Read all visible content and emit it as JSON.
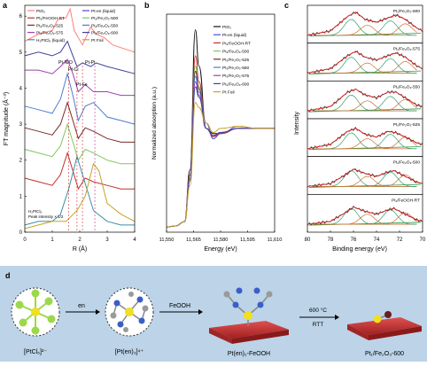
{
  "panel_a": {
    "letter": "a",
    "ylabel": "FT magnitude (Å⁻³)",
    "xlabel": "R (Å)",
    "xticks": [
      "0",
      "1",
      "2",
      "3",
      "4"
    ],
    "yticks": [
      "0",
      "1",
      "2",
      "3",
      "4",
      "5",
      "6"
    ],
    "legend": [
      "PtO₂",
      "Pt-en (liquid)",
      "Pt₁/FeOOH-RT",
      "Pt₁/Fe₂O₃-500",
      "Pt₁/Fe₂O₃-525",
      "Pt₁/Fe₂O₃-550",
      "Pt₁/Fe₂O₃-575",
      "Pt₁/Fe₂O₃-600",
      "H₂PtCl₆ (liquid)",
      "Pt Foil"
    ],
    "annotations": [
      "Pt-N/O",
      "Pt-Cl",
      "Pt-Fe",
      "Pt-Pt"
    ],
    "inset_line1": "H₂PtCl₆",
    "inset_line2": "Peak intensity × 1/2"
  },
  "panel_b": {
    "letter": "b",
    "ylabel": "Normalized absorption (a.u.)",
    "xlabel": "Energy (eV)",
    "xticks": [
      "11,550",
      "11,565",
      "11,580",
      "11,595",
      "11,610"
    ],
    "legend": [
      "PtO₂",
      "Pt-en (liquid)",
      "Pt₁/FeOOH-RT",
      "Pt₁/Fe₂O₃-500",
      "Pt₁/Fe₂O₃-525",
      "Pt₁/Fe₂O₃-550",
      "Pt₁/Fe₂O₃-575",
      "Pt₁/Fe₂O₃-600",
      "Pt Foil"
    ]
  },
  "panel_c": {
    "letter": "c",
    "ylabel": "Intensity",
    "xlabel": "Binding energy (eV)",
    "xticks": [
      "80",
      "78",
      "76",
      "74",
      "72",
      "70"
    ],
    "spectra": [
      "Pt₁/Fe₂O₃-600",
      "Pt₁/Fe₂O₃-575",
      "Pt₁/Fe₂O₃-550",
      "Pt₁/Fe₂O₃-525",
      "Pt₁/Fe₂O₃-500",
      "Pt₁/FeOOH-RT"
    ]
  },
  "panel_d": {
    "letter": "d",
    "arrow1": "en",
    "arrow2": "FeOOH",
    "arrow3_top": "600 °C",
    "arrow3_bottom": "RTT",
    "labels": [
      "[PtCl₆]²⁻",
      "[Pt(en)₃]⁴⁺",
      "Pt(en)₂-FeOOH",
      "Pt₁/Fe₂O₃-600"
    ]
  },
  "colors": {
    "PtO2": "#ff7f7f",
    "Pt-en": "#4b4bd6",
    "FeOOH-RT": "#c03030",
    "500": "#7cc85c",
    "525": "#7a2a2a",
    "550": "#4a7fcf",
    "575": "#a040b0",
    "600": "#4040a0",
    "H2PtCl6": "#3a8fa8",
    "Foil": "#c9a020"
  },
  "chart_data": [
    {
      "type": "line",
      "title": "",
      "xlabel": "R (Å)",
      "ylabel": "FT magnitude (Å⁻³)",
      "xlim": [
        0,
        4
      ],
      "ylim": [
        0,
        6.3
      ],
      "grid": false,
      "legend_position": "top",
      "series": [
        {
          "name": "PtO₂",
          "x": [
            0,
            0.5,
            1,
            1.2,
            1.5,
            1.65,
            1.8,
            2.1,
            2.4,
            2.6,
            2.9,
            3.2,
            3.6,
            4
          ],
          "y": [
            5.3,
            5.5,
            5.6,
            5.9,
            5.95,
            6.2,
            5.6,
            5.2,
            5.7,
            5.5,
            5.4,
            5.2,
            5.1,
            5.0
          ]
        },
        {
          "name": "Pt₁/Fe₂O₃-600",
          "x": [
            0,
            0.5,
            1,
            1.3,
            1.55,
            1.7,
            1.9,
            2.1,
            2.4,
            2.6,
            3,
            3.5,
            4
          ],
          "y": [
            4.9,
            5.0,
            4.9,
            5.0,
            5.3,
            5.0,
            4.6,
            4.7,
            4.6,
            4.7,
            4.6,
            4.5,
            4.4
          ]
        },
        {
          "name": "Pt₁/Fe₂O₃-575",
          "x": [
            0,
            0.5,
            1,
            1.3,
            1.55,
            1.75,
            1.95,
            2.2,
            2.5,
            3,
            3.5,
            4
          ],
          "y": [
            4.5,
            4.5,
            4.4,
            4.6,
            4.8,
            4.4,
            3.9,
            4.1,
            3.9,
            3.9,
            3.8,
            3.8
          ]
        },
        {
          "name": "Pt₁/Fe₂O₃-550",
          "x": [
            0,
            0.5,
            1,
            1.3,
            1.55,
            1.75,
            1.95,
            2.2,
            2.5,
            3,
            3.5,
            4
          ],
          "y": [
            3.5,
            3.4,
            3.3,
            3.7,
            4.4,
            3.8,
            3.1,
            3.5,
            3.6,
            3.2,
            3.1,
            3.0
          ]
        },
        {
          "name": "Pt₁/Fe₂O₃-525",
          "x": [
            0,
            0.5,
            1,
            1.3,
            1.55,
            1.75,
            1.95,
            2.2,
            2.5,
            3,
            3.5,
            4
          ],
          "y": [
            2.9,
            2.8,
            2.7,
            3.0,
            3.6,
            3.1,
            2.6,
            2.9,
            2.8,
            2.6,
            2.5,
            2.5
          ]
        },
        {
          "name": "Pt₁/Fe₂O₃-500",
          "x": [
            0,
            0.5,
            1,
            1.3,
            1.55,
            1.75,
            1.95,
            2.2,
            2.5,
            3,
            3.5,
            4
          ],
          "y": [
            2.3,
            2.2,
            2.1,
            2.4,
            3.0,
            2.5,
            2.0,
            2.3,
            2.2,
            2.0,
            1.9,
            1.9
          ]
        },
        {
          "name": "Pt₁/FeOOH-RT",
          "x": [
            0,
            0.5,
            1,
            1.3,
            1.55,
            1.75,
            1.95,
            2.2,
            2.5,
            3,
            3.5,
            4
          ],
          "y": [
            1.5,
            1.4,
            1.3,
            1.6,
            2.2,
            1.7,
            1.2,
            1.5,
            1.4,
            1.3,
            1.2,
            1.2
          ]
        },
        {
          "name": "H₂PtCl₆ (liquid)",
          "x": [
            0,
            0.5,
            1,
            1.3,
            1.6,
            1.9,
            2.1,
            2.5,
            3,
            3.5,
            4
          ],
          "y": [
            0.2,
            0.3,
            0.3,
            0.5,
            1.2,
            2.1,
            1.6,
            0.6,
            0.3,
            0.2,
            0.2
          ]
        },
        {
          "name": "Pt Foil",
          "x": [
            0,
            0.5,
            1,
            1.5,
            1.9,
            2.2,
            2.5,
            2.7,
            3,
            3.5,
            4
          ],
          "y": [
            0.1,
            0.2,
            0.3,
            0.3,
            0.6,
            1.0,
            1.9,
            1.7,
            0.8,
            0.5,
            0.3
          ]
        }
      ]
    },
    {
      "type": "line",
      "title": "",
      "xlabel": "Energy (eV)",
      "ylabel": "Normalized absorption (a.u.)",
      "xlim": [
        11550,
        11610
      ],
      "grid": false,
      "legend_position": "top-right",
      "series": [
        {
          "name": "PtO₂",
          "x": [
            11550,
            11555,
            11560,
            11563,
            11566,
            11568,
            11572,
            11576,
            11580,
            11590,
            11600,
            11610
          ],
          "y": [
            0.05,
            0.06,
            0.1,
            0.6,
            1.95,
            1.6,
            1.0,
            0.95,
            0.95,
            1.0,
            1.0,
            1.0
          ]
        },
        {
          "name": "Pt-en (liquid)",
          "x": [
            11550,
            11555,
            11560,
            11563,
            11566,
            11568,
            11572,
            11576,
            11580,
            11590,
            11600,
            11610
          ],
          "y": [
            0.05,
            0.06,
            0.1,
            0.5,
            1.55,
            1.4,
            1.05,
            0.9,
            0.95,
            1.02,
            1.0,
            1.0
          ]
        },
        {
          "name": "Pt₁/FeOOH-RT",
          "x": [
            11550,
            11555,
            11560,
            11563,
            11566,
            11568,
            11572,
            11576,
            11580,
            11590,
            11600,
            11610
          ],
          "y": [
            0.05,
            0.06,
            0.1,
            0.55,
            1.7,
            1.45,
            1.0,
            0.92,
            0.95,
            1.0,
            1.0,
            1.0
          ]
        },
        {
          "name": "Pt₁/Fe₂O₃-500",
          "x": [
            11550,
            11555,
            11560,
            11563,
            11566,
            11568,
            11572,
            11576,
            11580,
            11590,
            11600,
            11610
          ],
          "y": [
            0.05,
            0.06,
            0.1,
            0.55,
            1.6,
            1.4,
            1.0,
            0.93,
            0.96,
            1.0,
            1.0,
            1.0
          ]
        },
        {
          "name": "Pt₁/Fe₂O₃-525",
          "x": [
            11550,
            11555,
            11560,
            11563,
            11566,
            11568,
            11572,
            11576,
            11580,
            11590,
            11600,
            11610
          ],
          "y": [
            0.05,
            0.06,
            0.1,
            0.55,
            1.55,
            1.38,
            1.0,
            0.93,
            0.96,
            1.0,
            1.0,
            1.0
          ]
        },
        {
          "name": "Pt₁/Fe₂O₃-550",
          "x": [
            11550,
            11555,
            11560,
            11563,
            11566,
            11568,
            11572,
            11576,
            11580,
            11590,
            11600,
            11610
          ],
          "y": [
            0.05,
            0.06,
            0.1,
            0.52,
            1.5,
            1.35,
            1.0,
            0.93,
            0.96,
            1.0,
            1.0,
            1.0
          ]
        },
        {
          "name": "Pt₁/Fe₂O₃-575",
          "x": [
            11550,
            11555,
            11560,
            11563,
            11566,
            11568,
            11572,
            11576,
            11580,
            11590,
            11600,
            11610
          ],
          "y": [
            0.05,
            0.06,
            0.1,
            0.5,
            1.45,
            1.32,
            1.0,
            0.93,
            0.96,
            1.0,
            1.0,
            1.0
          ]
        },
        {
          "name": "Pt₁/Fe₂O₃-600",
          "x": [
            11550,
            11555,
            11560,
            11563,
            11566,
            11568,
            11572,
            11576,
            11580,
            11590,
            11600,
            11610
          ],
          "y": [
            0.05,
            0.06,
            0.1,
            0.5,
            1.4,
            1.3,
            1.0,
            0.93,
            0.96,
            1.0,
            1.0,
            1.0
          ]
        },
        {
          "name": "Pt Foil",
          "x": [
            11550,
            11555,
            11560,
            11563,
            11566,
            11568,
            11572,
            11576,
            11580,
            11590,
            11600,
            11610
          ],
          "y": [
            0.05,
            0.06,
            0.1,
            0.45,
            1.25,
            1.2,
            1.05,
            0.96,
            1.0,
            1.02,
            1.0,
            1.0
          ]
        }
      ]
    },
    {
      "type": "line",
      "title": "",
      "xlabel": "Binding energy (eV)",
      "ylabel": "Intensity",
      "xlim": [
        80,
        70
      ],
      "grid": false,
      "legend_position": "top-right",
      "series": [
        {
          "name": "Pt₁/Fe₂O₃-600",
          "x": [
            80,
            78,
            76.5,
            75.8,
            75,
            74,
            73,
            72.3,
            71.5,
            70.5,
            70
          ],
          "y": [
            0.15,
            0.3,
            0.8,
            0.95,
            0.7,
            0.6,
            0.75,
            0.85,
            0.7,
            0.4,
            0.3
          ]
        },
        {
          "name": "Pt₁/Fe₂O₃-575",
          "x": [
            80,
            78,
            76.5,
            75.8,
            75,
            74,
            73,
            72.3,
            71.5,
            70.5,
            70
          ],
          "y": [
            0.15,
            0.3,
            0.75,
            0.9,
            0.7,
            0.6,
            0.75,
            0.85,
            0.7,
            0.4,
            0.3
          ]
        },
        {
          "name": "Pt₁/Fe₂O₃-550",
          "x": [
            80,
            78,
            76.5,
            75.8,
            75,
            74,
            73,
            72.3,
            71.5,
            70.5,
            70
          ],
          "y": [
            0.15,
            0.3,
            0.8,
            0.9,
            0.7,
            0.6,
            0.8,
            0.8,
            0.6,
            0.35,
            0.3
          ]
        },
        {
          "name": "Pt₁/Fe₂O₃-525",
          "x": [
            80,
            78,
            76.5,
            75.8,
            75,
            74,
            73,
            72.3,
            71.5,
            70.5,
            70
          ],
          "y": [
            0.15,
            0.3,
            0.75,
            0.85,
            0.65,
            0.55,
            0.75,
            0.7,
            0.55,
            0.35,
            0.3
          ]
        },
        {
          "name": "Pt₁/Fe₂O₃-500",
          "x": [
            80,
            78,
            76.5,
            76,
            75,
            74,
            73,
            72.5,
            71.5,
            70.5,
            70
          ],
          "y": [
            0.15,
            0.25,
            0.6,
            0.75,
            0.6,
            0.5,
            0.65,
            0.7,
            0.5,
            0.3,
            0.25
          ]
        },
        {
          "name": "Pt₁/FeOOH-RT",
          "x": [
            80,
            78,
            76.5,
            76,
            75,
            74,
            73,
            72.5,
            71.5,
            70.5,
            70
          ],
          "y": [
            0.15,
            0.25,
            0.6,
            0.75,
            0.6,
            0.5,
            0.65,
            0.7,
            0.5,
            0.3,
            0.25
          ]
        }
      ]
    }
  ]
}
